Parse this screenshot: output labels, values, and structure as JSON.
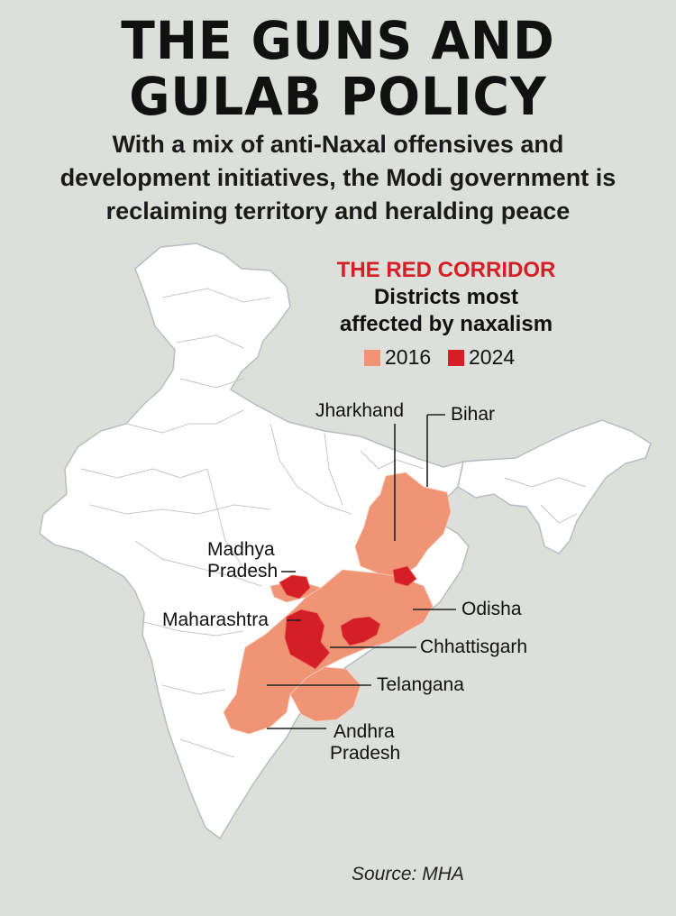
{
  "title_line1": "THE GUNS AND",
  "title_line2": "GULAB POLICY",
  "subtitle_line1": "With a mix of anti-Naxal offensives and",
  "subtitle_line2": "development initiatives, the Modi government is",
  "subtitle_line3": "reclaiming territory and heralding peace",
  "legend": {
    "title": "THE RED CORRIDOR",
    "subtitle_line1": "Districts most",
    "subtitle_line2": "affected by naxalism",
    "items": [
      {
        "label": "2016",
        "color": "#ef9474"
      },
      {
        "label": "2024",
        "color": "#d51f26"
      }
    ]
  },
  "labels": {
    "jharkhand": "Jharkhand",
    "bihar": "Bihar",
    "madhya_pradesh_1": "Madhya",
    "madhya_pradesh_2": "Pradesh",
    "maharashtra": "Maharashtra",
    "odisha": "Odisha",
    "chhattisgarh": "Chhattisgarh",
    "telangana": "Telangana",
    "andhra_pradesh_1": "Andhra",
    "andhra_pradesh_2": "Pradesh"
  },
  "source": "Source: MHA",
  "colors": {
    "land": "#ffffff",
    "border": "#b9bcc0",
    "background": "#dde0da",
    "affected_2016": "#ef9474",
    "affected_2024": "#d51f26"
  }
}
